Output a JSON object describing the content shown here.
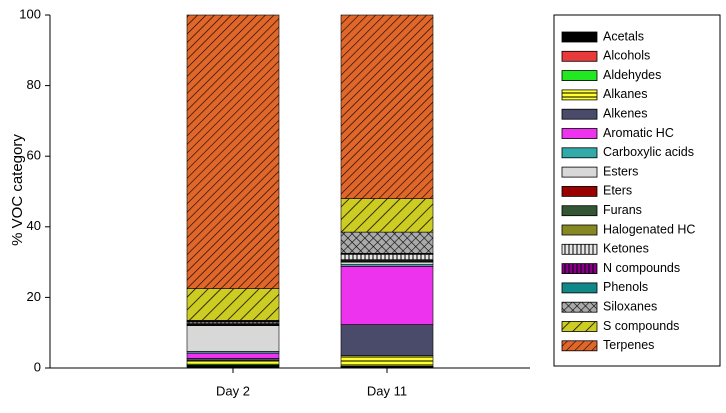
{
  "chart_data": {
    "type": "stacked_bar",
    "y_label": "% VOC category",
    "categories": [
      "Day 2",
      "Day 11"
    ],
    "ylim": [
      0,
      100
    ],
    "yticks": [
      0,
      20,
      40,
      60,
      80,
      100
    ],
    "series": [
      {
        "name": "Acetals",
        "color": "#000000",
        "values": [
          0.6,
          0.3
        ]
      },
      {
        "name": "Alcohols",
        "color": "#e83a3a",
        "values": [
          0.2,
          0.1
        ]
      },
      {
        "name": "Aldehydes",
        "color": "#22e822",
        "values": [
          0.3,
          0.1
        ]
      },
      {
        "name": "Alkanes",
        "color": "#ffff33",
        "values": [
          1.0,
          3.0
        ]
      },
      {
        "name": "Alkenes",
        "color": "#4a4a6a",
        "values": [
          0.6,
          8.8
        ]
      },
      {
        "name": "Aromatic HC",
        "color": "#ee33ee",
        "values": [
          1.5,
          16.5
        ]
      },
      {
        "name": "Carboxylic acids",
        "color": "#33aaaa",
        "values": [
          0.5,
          0.5
        ]
      },
      {
        "name": "Esters",
        "color": "#d8d8d8",
        "values": [
          7.3,
          0.7
        ]
      },
      {
        "name": "Eters",
        "color": "#990000",
        "values": [
          0.2,
          0.2
        ]
      },
      {
        "name": "Furans",
        "color": "#335533",
        "values": [
          0.2,
          0.3
        ]
      },
      {
        "name": "Halogenated HC",
        "color": "#888822",
        "values": [
          0.2,
          0.2
        ]
      },
      {
        "name": "Ketones",
        "color": "#e6e6e6",
        "values": [
          0.4,
          1.5
        ]
      },
      {
        "name": "N compounds",
        "color": "#880088",
        "values": [
          0.2,
          0.2
        ]
      },
      {
        "name": "Phenols",
        "color": "#118888",
        "values": [
          0.1,
          0.1
        ]
      },
      {
        "name": "Siloxanes",
        "color": "#aaaaaa",
        "values": [
          0.2,
          6.0
        ]
      },
      {
        "name": "S compounds",
        "color": "#cccc22",
        "values": [
          9.0,
          9.5
        ]
      },
      {
        "name": "Terpenes",
        "color": "#e0662a",
        "values": [
          77.5,
          52.0
        ]
      }
    ]
  }
}
